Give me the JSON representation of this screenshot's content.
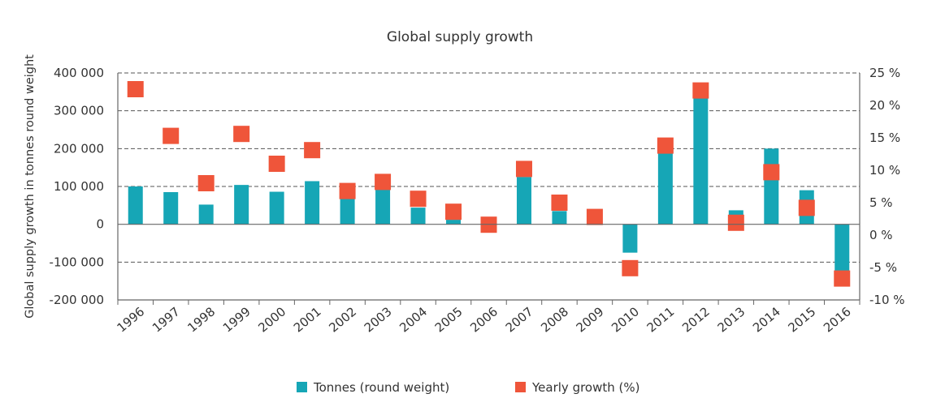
{
  "chart_data": {
    "type": "bar",
    "title": "Global supply growth",
    "ylabel": "Global supply growth in tonnes round weight",
    "xlabel": "",
    "categories": [
      "1996",
      "1997",
      "1998",
      "1999",
      "2000",
      "2001",
      "2002",
      "2003",
      "2004",
      "2005",
      "2006",
      "2007",
      "2008",
      "2009",
      "2010",
      "2011",
      "2012",
      "2013",
      "2014",
      "2015",
      "2016"
    ],
    "ylim": [
      -200000,
      400000
    ],
    "yticks": [
      400000,
      300000,
      200000,
      100000,
      0,
      -100000,
      -200000
    ],
    "ytick_labels": [
      "400 000",
      "300 000",
      "200 000",
      "100 000",
      "0",
      "-100 000",
      "-200 000"
    ],
    "y2lim": [
      -10,
      25
    ],
    "y2ticks": [
      25,
      20,
      15,
      10,
      5,
      0,
      -5,
      -10
    ],
    "y2tick_labels": [
      "25 %",
      "20 %",
      "15 %",
      "10 %",
      "5 %",
      "0 %",
      "-5 %",
      "-10 %"
    ],
    "grid": true,
    "legend_position": "bottom",
    "series": [
      {
        "name": "Tonnes (round weight)",
        "type": "bar",
        "axis": "left",
        "color": "#16A6B6",
        "values": [
          100000,
          85000,
          52000,
          104000,
          86000,
          114000,
          68000,
          92000,
          44000,
          12000,
          0,
          125000,
          35000,
          0,
          -75000,
          187000,
          340000,
          37000,
          200000,
          90000,
          -125000
        ]
      },
      {
        "name": "Yearly growth (%)",
        "type": "scatter",
        "axis": "right",
        "color": "#EF553A",
        "marker": "square",
        "values": [
          22.5,
          15.3,
          8.0,
          15.6,
          11.0,
          13.1,
          6.8,
          8.2,
          5.6,
          3.6,
          1.6,
          10.2,
          5.0,
          2.8,
          -5.1,
          13.8,
          22.3,
          1.9,
          9.7,
          4.2,
          -6.7
        ]
      }
    ]
  }
}
